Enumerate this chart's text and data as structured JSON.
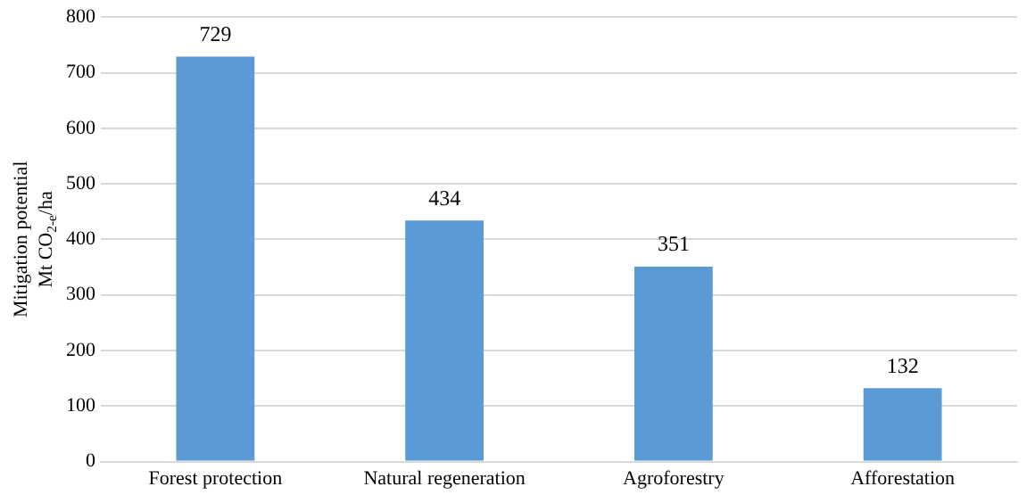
{
  "chart_data": {
    "type": "bar",
    "ylabel": "Mitigation potential\nMt CO$_{2-e}$/ha",
    "categories": [
      "Forest protection",
      "Natural regeneration",
      "Agroforestry",
      "Afforestation"
    ],
    "values": [
      729,
      434,
      351,
      132
    ],
    "color": "#5b9bd5",
    "ylim": [
      0,
      800
    ],
    "yticks": [
      0,
      100,
      200,
      300,
      400,
      500,
      600,
      700,
      800
    ],
    "grid": "y",
    "data_labels": true,
    "legend": false
  }
}
